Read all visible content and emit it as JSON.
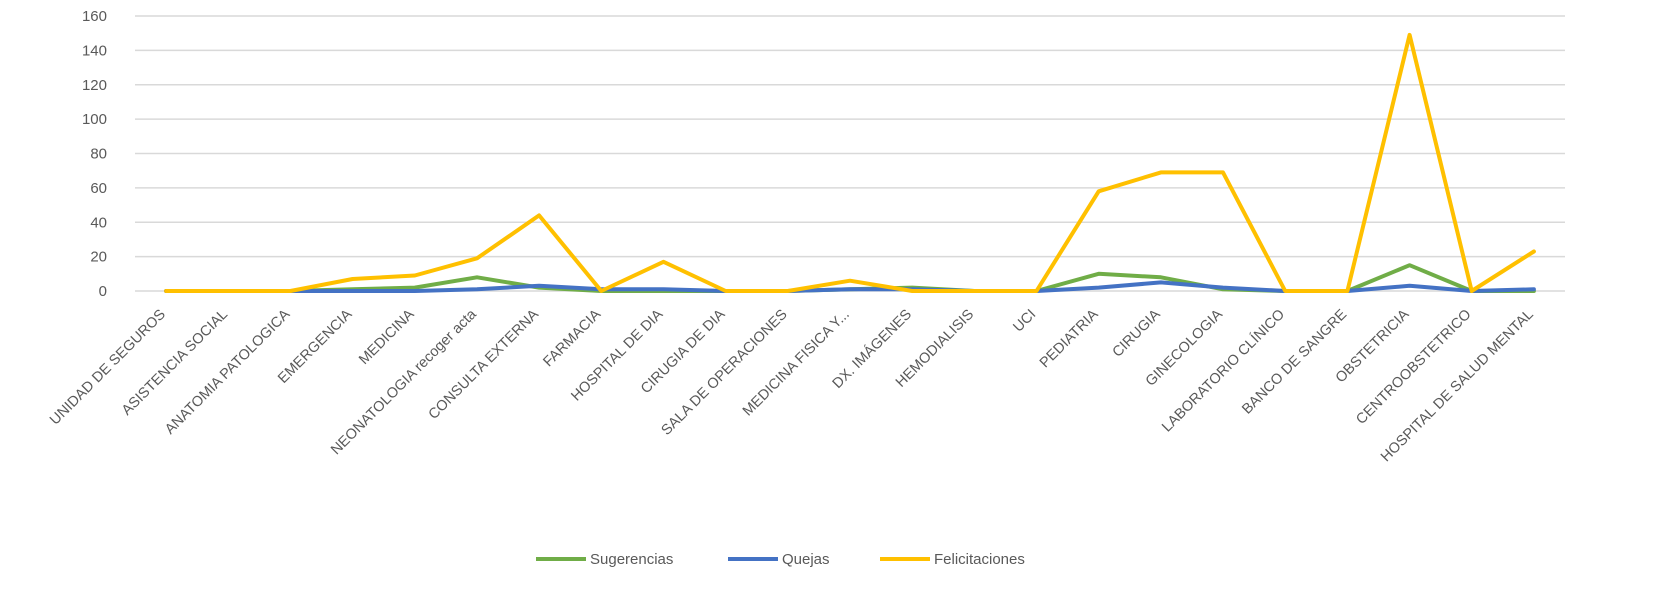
{
  "chart_data": {
    "type": "line",
    "title": "",
    "xlabel": "",
    "ylabel": "",
    "ylim": [
      0,
      160
    ],
    "yticks": [
      "0",
      "20",
      "40",
      "60",
      "80",
      "100",
      "120",
      "140",
      "160"
    ],
    "grid": true,
    "legend_position": "bottom",
    "categories": [
      "UNIDAD DE SEGUROS",
      "ASISTENCIA SOCIAL",
      "ANATOMIA PATOLOGICA",
      "EMERGENCIA",
      "MEDICINA",
      "NEONATOLOGIA recoger acta",
      "CONSULTA EXTERNA",
      "FARMACIA",
      "HOSPITAL DE DIA",
      "CIRUGIA DE DIA",
      "SALA DE OPERACIONES",
      "MEDICINA FISICA Y...",
      "DX. IMÁGENES",
      "HEMODIALISIS",
      "UCI",
      "PEDIATRIA",
      "CIRUGIA",
      "GINECOLOGIA",
      "LABORATORIO CLÍNICO",
      "BANCO DE SANGRE",
      "OBSTETRICIA",
      "CENTROOBSTETRICO",
      "HOSPITAL DE SALUD MENTAL"
    ],
    "series": [
      {
        "name": "Sugerencias",
        "color": "#70AD47",
        "values": [
          0,
          0,
          0,
          1,
          2,
          8,
          2,
          0,
          0,
          0,
          0,
          1,
          2,
          0,
          0,
          10,
          8,
          1,
          0,
          0,
          15,
          0,
          0
        ]
      },
      {
        "name": "Quejas",
        "color": "#4472C4",
        "values": [
          0,
          0,
          0,
          0,
          0,
          1,
          3,
          1,
          1,
          0,
          0,
          1,
          1,
          0,
          0,
          2,
          5,
          2,
          0,
          0,
          3,
          0,
          1
        ]
      },
      {
        "name": "Felicitaciones",
        "color": "#FFC000",
        "values": [
          0,
          0,
          0,
          7,
          9,
          19,
          44,
          0,
          17,
          0,
          0,
          6,
          0,
          0,
          0,
          58,
          69,
          69,
          0,
          0,
          149,
          0,
          23
        ]
      }
    ]
  }
}
